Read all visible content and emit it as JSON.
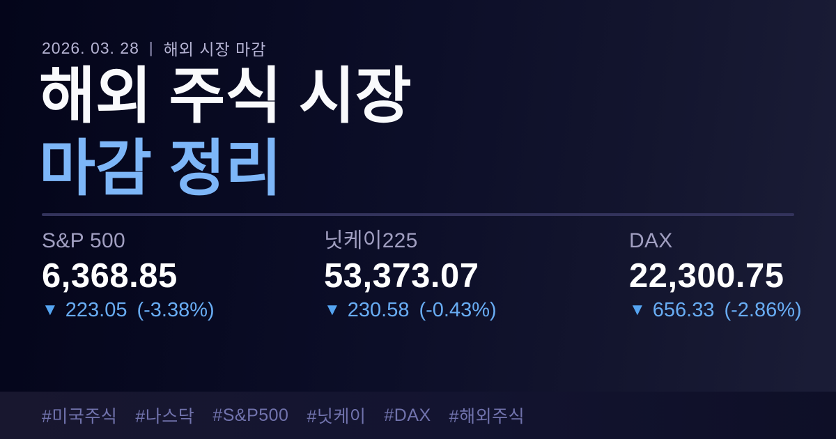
{
  "header": {
    "date": "2026. 03. 28",
    "separator": "|",
    "context": "해외 시장 마감"
  },
  "title": {
    "line1": "해외 주식 시장",
    "line2": "마감 정리"
  },
  "indices": [
    {
      "name": "S&P 500",
      "value": "6,368.85",
      "direction": "▼",
      "change": "223.05",
      "change_pct": "(-3.38%)"
    },
    {
      "name": "닛케이225",
      "value": "53,373.07",
      "direction": "▼",
      "change": "230.58",
      "change_pct": "(-0.43%)"
    },
    {
      "name": "DAX",
      "value": "22,300.75",
      "direction": "▼",
      "change": "656.33",
      "change_pct": "(-2.86%)"
    }
  ],
  "hashtags": [
    "#미국주식",
    "#나스닥",
    "#S&P500",
    "#닛케이",
    "#DAX",
    "#해외주식"
  ],
  "colors": {
    "background_dark": "#04051a",
    "background_light": "#1b1d37",
    "footer_bar": "#15152e",
    "title_white": "#f9fafc",
    "title_accent_blue": "#7db6f8",
    "down_blue": "#68acf3",
    "triangle_blue": "#55a4f1",
    "index_label": "#a19fc1",
    "date_text": "#b5b3d3",
    "hashtag_text": "#7173ad",
    "divider": "#33335c"
  }
}
